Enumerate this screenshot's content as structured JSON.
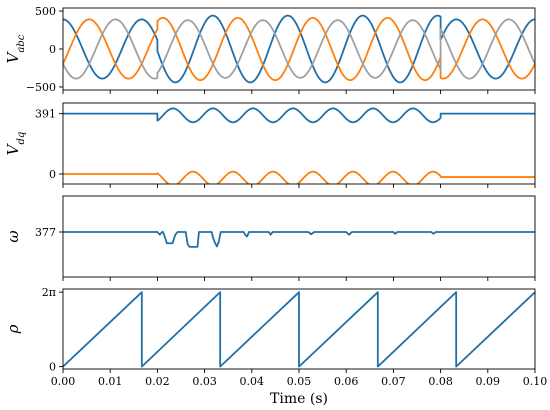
{
  "chart_data": [
    {
      "type": "line",
      "ylabel": "V_abc",
      "xlim": [
        0,
        0.1
      ],
      "ylim": [
        -540,
        540
      ],
      "yticks": [
        {
          "value": 500,
          "label": "500"
        },
        {
          "value": 0,
          "label": "0"
        },
        {
          "value": -500,
          "label": "−500"
        }
      ],
      "series": [
        {
          "color": "#1f6fa8",
          "segments": [
            {
              "x_start": 0.0,
              "x_end": 0.02,
              "amplitude": 390,
              "frequency_hz": 60,
              "phase_deg": 90,
              "offset": 0
            },
            {
              "x_start": 0.02,
              "x_end": 0.08,
              "amplitude": 440,
              "frequency_hz": 63,
              "phase_deg": 90,
              "offset": 0
            },
            {
              "x_start": 0.08,
              "x_end": 0.1,
              "amplitude": 390,
              "frequency_hz": 60,
              "phase_deg": 90,
              "offset": 0
            }
          ]
        },
        {
          "color": "#ff7f0e",
          "segments": [
            {
              "x_start": 0.0,
              "x_end": 0.02,
              "amplitude": 390,
              "frequency_hz": 60,
              "phase_deg": -30,
              "offset": 0
            },
            {
              "x_start": 0.02,
              "x_end": 0.08,
              "amplitude": 410,
              "frequency_hz": 63,
              "phase_deg": -30,
              "offset": 0
            },
            {
              "x_start": 0.08,
              "x_end": 0.1,
              "amplitude": 390,
              "frequency_hz": 60,
              "phase_deg": -30,
              "offset": 0
            }
          ]
        },
        {
          "color": "#a0a0a0",
          "segments": [
            {
              "x_start": 0.0,
              "x_end": 0.02,
              "amplitude": 390,
              "frequency_hz": 60,
              "phase_deg": 210,
              "offset": 0
            },
            {
              "x_start": 0.02,
              "x_end": 0.08,
              "amplitude": 380,
              "frequency_hz": 63,
              "phase_deg": 210,
              "offset": 0
            },
            {
              "x_start": 0.08,
              "x_end": 0.1,
              "amplitude": 390,
              "frequency_hz": 60,
              "phase_deg": 210,
              "offset": 0
            }
          ]
        }
      ]
    },
    {
      "type": "line",
      "ylabel": "V_dq",
      "xlim": [
        0,
        0.1
      ],
      "ylim": [
        -65,
        460
      ],
      "yticks": [
        {
          "value": 391,
          "label": "391"
        },
        {
          "value": 0,
          "label": "0"
        }
      ],
      "series": [
        {
          "color": "#1f6fa8",
          "segments": [
            {
              "x_start": 0.0,
              "x_end": 0.02,
              "amplitude": 0,
              "frequency_hz": 60,
              "phase_deg": 0,
              "offset": 391
            },
            {
              "x_start": 0.02,
              "x_end": 0.08,
              "amplitude": 45,
              "frequency_hz": 118,
              "phase_deg": 180,
              "offset": 380
            },
            {
              "x_start": 0.08,
              "x_end": 0.1,
              "amplitude": 0,
              "frequency_hz": 60,
              "phase_deg": 0,
              "offset": 391
            }
          ]
        },
        {
          "color": "#ff7f0e",
          "segments": [
            {
              "x_start": 0.0,
              "x_end": 0.02,
              "amplitude": 0,
              "frequency_hz": 60,
              "phase_deg": 0,
              "offset": 0
            },
            {
              "x_start": 0.02,
              "x_end": 0.08,
              "amplitude": 45,
              "frequency_hz": 118,
              "phase_deg": 0,
              "offset": -30
            },
            {
              "x_start": 0.08,
              "x_end": 0.1,
              "amplitude": 0,
              "frequency_hz": 60,
              "phase_deg": 0,
              "offset": -20
            }
          ]
        }
      ]
    },
    {
      "type": "line",
      "ylabel": "ω",
      "xlim": [
        0,
        0.1
      ],
      "ylim": [
        367,
        385
      ],
      "yticks": [
        {
          "value": 377,
          "label": "377"
        }
      ],
      "series": [
        {
          "color": "#1f6fa8",
          "points": [
            [
              0,
              377
            ],
            [
              0.02,
              377
            ],
            [
              0.0205,
              376.4
            ],
            [
              0.021,
              377
            ],
            [
              0.0212,
              377
            ],
            [
              0.0218,
              375.2
            ],
            [
              0.022,
              374.5
            ],
            [
              0.0232,
              374.5
            ],
            [
              0.0238,
              376.4
            ],
            [
              0.0243,
              377
            ],
            [
              0.026,
              377
            ],
            [
              0.0264,
              374.3
            ],
            [
              0.0268,
              373.7
            ],
            [
              0.0285,
              373.7
            ],
            [
              0.0288,
              377
            ],
            [
              0.03,
              377
            ],
            [
              0.0315,
              377
            ],
            [
              0.0318,
              375.7
            ],
            [
              0.0322,
              374.6
            ],
            [
              0.0326,
              373.8
            ],
            [
              0.033,
              374.8
            ],
            [
              0.0334,
              377
            ],
            [
              0.035,
              377
            ],
            [
              0.0383,
              377
            ],
            [
              0.0386,
              376.4
            ],
            [
              0.039,
              376.0
            ],
            [
              0.0394,
              377
            ],
            [
              0.043,
              377
            ],
            [
              0.0436,
              377
            ],
            [
              0.044,
              376.4
            ],
            [
              0.0444,
              377
            ],
            [
              0.047,
              377
            ],
            [
              0.052,
              377
            ],
            [
              0.0526,
              376.5
            ],
            [
              0.0532,
              377
            ],
            [
              0.06,
              377
            ],
            [
              0.0606,
              376.4
            ],
            [
              0.0612,
              377
            ],
            [
              0.07,
              377
            ],
            [
              0.0704,
              376.6
            ],
            [
              0.0708,
              377
            ],
            [
              0.078,
              377
            ],
            [
              0.0785,
              376.6
            ],
            [
              0.079,
              377
            ],
            [
              0.1,
              377
            ]
          ]
        }
      ]
    },
    {
      "type": "line",
      "ylabel": "ρ",
      "xlabel": "Time (s)",
      "xlim": [
        0,
        0.1
      ],
      "ylim": [
        -0.2,
        6.55
      ],
      "yticks": [
        {
          "value": 0,
          "label": "0"
        },
        {
          "value": 6.2832,
          "label": "2π"
        }
      ],
      "xticks": [
        "0.00",
        "0.01",
        "0.02",
        "0.03",
        "0.04",
        "0.05",
        "0.06",
        "0.07",
        "0.08",
        "0.09",
        "0.10"
      ],
      "series": [
        {
          "color": "#1f6fa8",
          "points": [
            [
              0,
              0
            ],
            [
              0.0167,
              6.2832
            ],
            [
              0.0167,
              0
            ],
            [
              0.0333,
              6.2832
            ],
            [
              0.0333,
              0
            ],
            [
              0.05,
              6.2832
            ],
            [
              0.05,
              0
            ],
            [
              0.0667,
              6.2832
            ],
            [
              0.0667,
              0
            ],
            [
              0.0833,
              6.2832
            ],
            [
              0.0833,
              0
            ],
            [
              0.1,
              6.2832
            ]
          ]
        }
      ]
    }
  ]
}
